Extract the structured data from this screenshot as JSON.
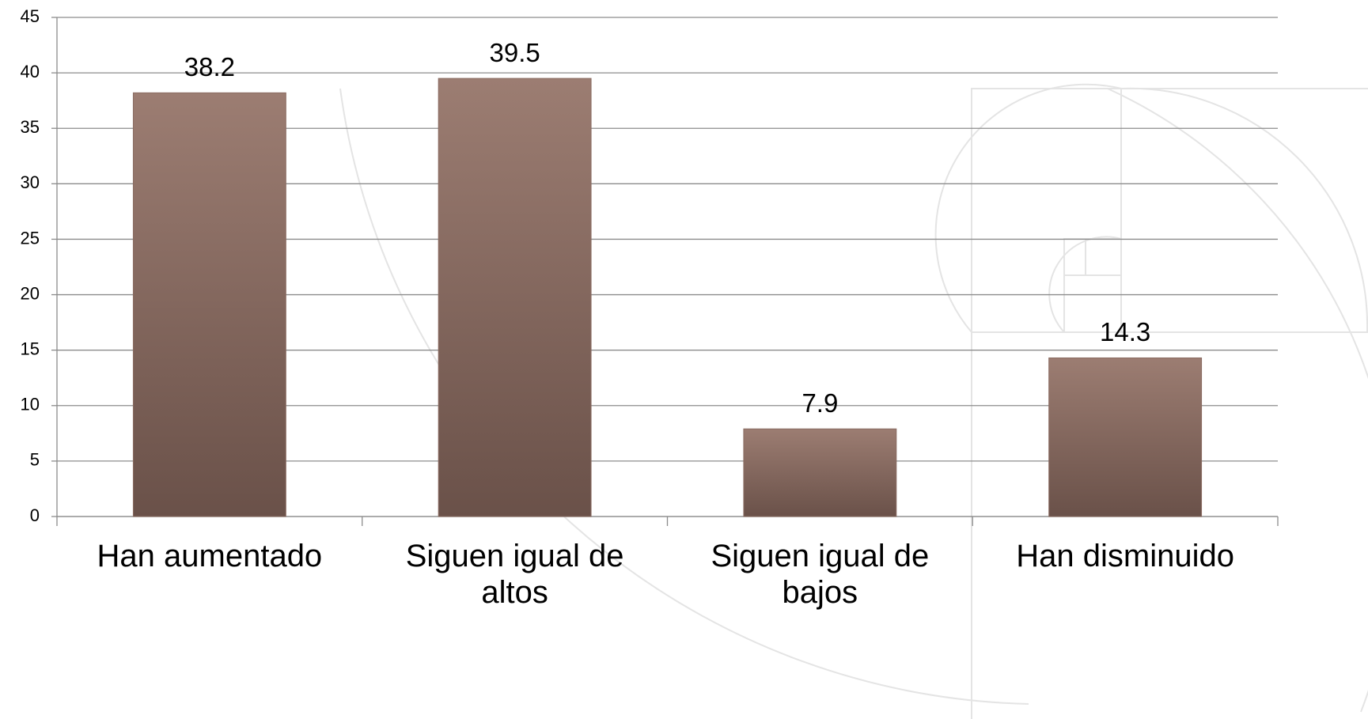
{
  "chart_data": {
    "type": "bar",
    "categories": [
      "Han aumentado",
      "Siguen igual de altos",
      "Siguen igual de bajos",
      "Han disminuido"
    ],
    "values": [
      38.2,
      39.5,
      7.9,
      14.3
    ],
    "color": "#8a6b61",
    "ylim": [
      0,
      45
    ],
    "yticks": [
      0,
      5,
      10,
      15,
      20,
      25,
      30,
      35,
      40,
      45
    ],
    "grid": true
  }
}
